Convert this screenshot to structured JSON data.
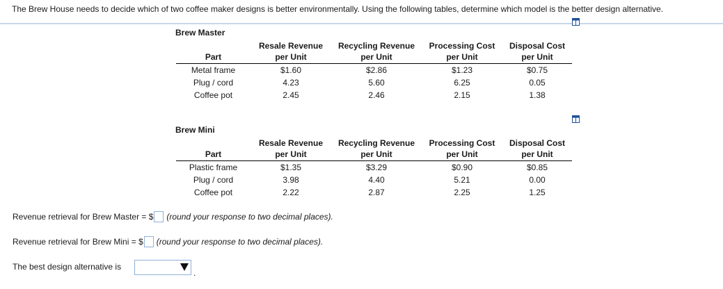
{
  "question": "The Brew House needs to decide which of two coffee maker designs is better environmentally. Using the following tables, determine which model is the better design alternative.",
  "tables": [
    {
      "title": "Brew Master",
      "headers": [
        [
          "Part",
          ""
        ],
        [
          "Resale Revenue",
          "per Unit"
        ],
        [
          "Recycling Revenue",
          "per Unit"
        ],
        [
          "Processing Cost",
          "per Unit"
        ],
        [
          "Disposal Cost",
          "per Unit"
        ]
      ],
      "rows": [
        [
          "Metal frame",
          "$1.60",
          "$2.86",
          "$1.23",
          "$0.75"
        ],
        [
          "Plug / cord",
          "4.23",
          "5.60",
          "6.25",
          "0.05"
        ],
        [
          "Coffee pot",
          "2.45",
          "2.46",
          "2.15",
          "1.38"
        ]
      ]
    },
    {
      "title": "Brew Mini",
      "headers": [
        [
          "Part",
          ""
        ],
        [
          "Resale Revenue",
          "per Unit"
        ],
        [
          "Recycling Revenue",
          "per Unit"
        ],
        [
          "Processing Cost",
          "per Unit"
        ],
        [
          "Disposal Cost",
          "per Unit"
        ]
      ],
      "rows": [
        [
          "Plastic frame",
          "$1.35",
          "$3.29",
          "$0.90",
          "$0.85"
        ],
        [
          "Plug / cord",
          "3.98",
          "4.40",
          "5.21",
          "0.00"
        ],
        [
          "Coffee pot",
          "2.22",
          "2.87",
          "2.25",
          "1.25"
        ]
      ]
    }
  ],
  "answers": {
    "master_label": "Revenue retrieval for Brew Master = $",
    "master_hint": "(round your response to two decimal places).",
    "mini_label": "Revenue retrieval for Brew Mini = $",
    "mini_hint": "(round your response to two decimal places).",
    "best_label": "The best design alternative is",
    "best_value": "",
    "best_suffix": "."
  },
  "icons": {
    "copy_icon": "copy-to-spreadsheet-icon",
    "dropdown_icon": "triangle-down-icon"
  },
  "colors": {
    "divider": "#c9d7ea",
    "input_border": "#8fb0d8"
  }
}
